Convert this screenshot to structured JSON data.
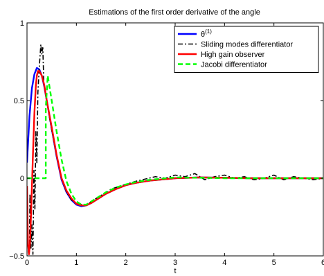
{
  "chart_data": {
    "type": "line",
    "title": "Estimations of the first order derivative of the angle",
    "xlabel": "t",
    "ylabel": "",
    "xlim": [
      0,
      6
    ],
    "ylim": [
      -0.5,
      1
    ],
    "xticks": [
      "0",
      "1",
      "2",
      "3",
      "4",
      "5",
      "6"
    ],
    "yticks": [
      "−0.5",
      "0",
      "0.5",
      "1"
    ],
    "grid": false,
    "legend_position": "top-right",
    "series": [
      {
        "name": "θ(1)",
        "name_base": "θ",
        "name_sup": "(1)",
        "color": "#0000ff",
        "style": "solid",
        "x": [
          0,
          0.05,
          0.1,
          0.15,
          0.2,
          0.25,
          0.3,
          0.35,
          0.4,
          0.5,
          0.6,
          0.7,
          0.8,
          0.9,
          1.0,
          1.1,
          1.2,
          1.3,
          1.4,
          1.6,
          1.8,
          2.0,
          2.2,
          2.5,
          3.0,
          3.5,
          4.0,
          4.5,
          5.0,
          5.5,
          6.0
        ],
        "y": [
          0.1,
          0.4,
          0.58,
          0.67,
          0.71,
          0.7,
          0.66,
          0.59,
          0.5,
          0.32,
          0.14,
          -0.01,
          -0.09,
          -0.14,
          -0.17,
          -0.18,
          -0.175,
          -0.16,
          -0.14,
          -0.1,
          -0.07,
          -0.045,
          -0.03,
          -0.015,
          0.0,
          0.005,
          0.003,
          0.0,
          0.0,
          0.0,
          0.0
        ]
      },
      {
        "name": "Sliding modes differentiator",
        "color": "#000000",
        "style": "dashdot",
        "x": [
          0,
          0.03,
          0.05,
          0.06,
          0.08,
          0.1,
          0.12,
          0.14,
          0.16,
          0.18,
          0.2,
          0.22,
          0.25,
          0.28,
          0.3,
          0.32,
          0.34,
          0.36,
          0.38,
          0.4,
          0.45,
          0.5,
          0.6,
          0.7,
          0.8,
          0.9,
          1.0,
          1.1,
          1.2,
          1.3,
          1.4,
          1.5,
          1.6,
          1.7,
          1.8,
          1.9,
          2.0,
          2.2,
          2.4,
          2.6,
          2.8,
          3.0,
          3.2,
          3.4,
          3.6,
          3.8,
          4.0,
          4.2,
          4.4,
          4.6,
          4.8,
          5.0,
          5.2,
          5.4,
          5.6,
          5.8,
          6.0
        ],
        "y": [
          -0.2,
          -0.48,
          -0.47,
          -0.1,
          -0.45,
          -0.3,
          -0.49,
          0.05,
          -0.2,
          0.3,
          0.1,
          0.55,
          0.72,
          0.86,
          0.8,
          0.84,
          0.62,
          0.58,
          0.55,
          0.5,
          0.4,
          0.31,
          0.14,
          0.0,
          -0.09,
          -0.14,
          -0.16,
          -0.17,
          -0.18,
          -0.15,
          -0.13,
          -0.11,
          -0.1,
          -0.07,
          -0.06,
          -0.05,
          -0.04,
          -0.02,
          -0.005,
          0.01,
          0.0,
          0.02,
          0.01,
          0.03,
          -0.01,
          0.01,
          0.02,
          0.0,
          0.01,
          -0.01,
          0.0,
          0.02,
          -0.01,
          0.01,
          0.0,
          -0.01,
          0.0
        ]
      },
      {
        "name": "High gain observer",
        "color": "#ff0000",
        "style": "solid",
        "x": [
          0,
          0.02,
          0.04,
          0.06,
          0.08,
          0.1,
          0.12,
          0.15,
          0.18,
          0.2,
          0.22,
          0.25,
          0.3,
          0.35,
          0.4,
          0.5,
          0.6,
          0.7,
          0.8,
          0.9,
          1.0,
          1.1,
          1.2,
          1.3,
          1.4,
          1.6,
          1.8,
          2.0,
          2.2,
          2.5,
          3.0,
          3.5,
          4.0,
          4.5,
          5.0,
          5.5,
          6.0
        ],
        "y": [
          -0.05,
          -0.42,
          -0.49,
          -0.42,
          -0.25,
          -0.05,
          0.15,
          0.42,
          0.6,
          0.66,
          0.69,
          0.69,
          0.66,
          0.6,
          0.5,
          0.33,
          0.15,
          0.0,
          -0.08,
          -0.13,
          -0.165,
          -0.175,
          -0.175,
          -0.16,
          -0.14,
          -0.1,
          -0.07,
          -0.045,
          -0.03,
          -0.015,
          0.0,
          0.005,
          0.003,
          0.0,
          0.0,
          0.0,
          0.0
        ]
      },
      {
        "name": "Jacobi differentiator",
        "color": "#00ff00",
        "style": "dashed",
        "x": [
          0,
          0.2,
          0.38,
          0.38,
          0.42,
          0.5,
          0.6,
          0.7,
          0.8,
          0.9,
          1.0,
          1.1,
          1.2,
          1.3,
          1.4,
          1.5,
          1.6,
          1.8,
          2.0,
          2.2,
          2.5,
          3.0,
          3.5,
          4.0,
          4.5,
          5.0,
          5.5,
          6.0
        ],
        "y": [
          0.0,
          0.0,
          0.0,
          0.45,
          0.66,
          0.5,
          0.3,
          0.12,
          -0.02,
          -0.1,
          -0.15,
          -0.17,
          -0.17,
          -0.15,
          -0.13,
          -0.11,
          -0.09,
          -0.06,
          -0.04,
          -0.025,
          -0.01,
          0.005,
          0.003,
          0.0,
          0.0,
          0.0,
          0.0,
          0.0
        ]
      }
    ]
  }
}
